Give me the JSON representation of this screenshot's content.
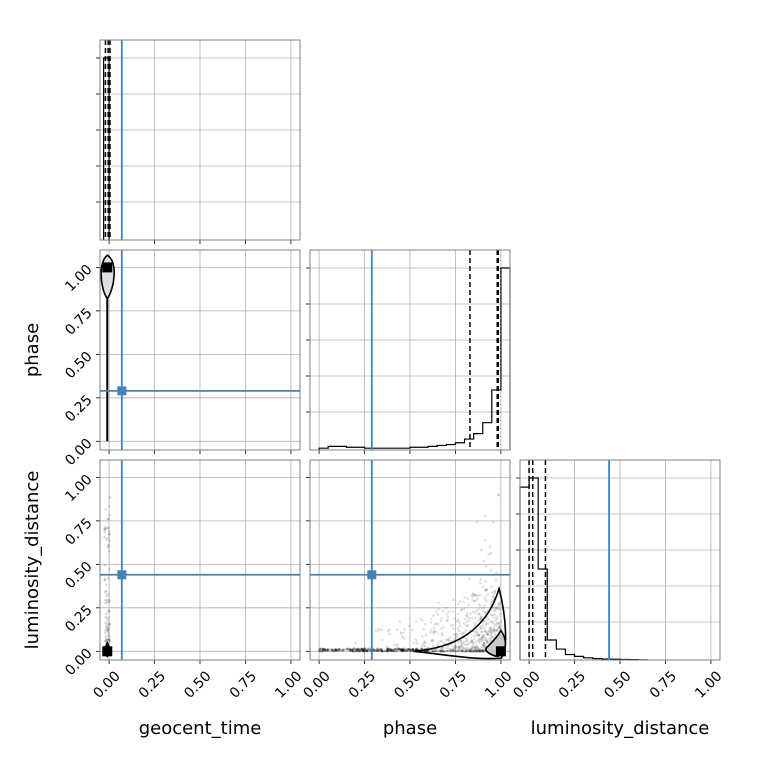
{
  "chart_data": {
    "type": "corner",
    "parameters": [
      "geocent_time",
      "phase",
      "luminosity_distance"
    ],
    "axis_labels": {
      "x": [
        "geocent_time",
        "phase",
        "luminosity_distance"
      ],
      "y": [
        "",
        "phase",
        "luminosity_distance"
      ]
    },
    "ticks": [
      0.0,
      0.25,
      0.5,
      0.75,
      1.0
    ],
    "tick_labels": [
      "0.00",
      "0.25",
      "0.50",
      "0.75",
      "1.00"
    ],
    "xlim": [
      -0.05,
      1.05
    ],
    "ylim": [
      -0.05,
      1.1
    ],
    "grid": true,
    "truth": {
      "geocent_time": 0.07,
      "phase": 0.29,
      "luminosity_distance": 0.44
    },
    "truth_color": "#4682b4",
    "posterior_max": {
      "geocent_time": -0.01,
      "phase": 1.0,
      "luminosity_distance": 0.0
    },
    "quantiles": {
      "geocent_time": [
        -0.02,
        -0.005,
        0.005
      ],
      "phase": [
        0.83,
        0.98,
        0.985
      ],
      "luminosity_distance": [
        0.0,
        0.02,
        0.09
      ]
    },
    "histograms": {
      "geocent_time": {
        "bins": [
          -0.03,
          0.0
        ],
        "counts": [
          1.0
        ]
      },
      "phase": {
        "bins": [
          0.0,
          0.05,
          0.1,
          0.15,
          0.2,
          0.25,
          0.3,
          0.35,
          0.4,
          0.45,
          0.5,
          0.55,
          0.6,
          0.65,
          0.7,
          0.75,
          0.8,
          0.85,
          0.9,
          0.95,
          1.0,
          1.05
        ],
        "counts": [
          0.01,
          0.02,
          0.02,
          0.015,
          0.015,
          0.01,
          0.01,
          0.01,
          0.01,
          0.01,
          0.015,
          0.015,
          0.02,
          0.025,
          0.03,
          0.04,
          0.06,
          0.09,
          0.15,
          0.33,
          1.0
        ]
      },
      "luminosity_distance": {
        "bins": [
          -0.05,
          0.0,
          0.05,
          0.1,
          0.15,
          0.2,
          0.25,
          0.3,
          0.35,
          0.4,
          0.45,
          0.5,
          0.55,
          0.6,
          0.65
        ],
        "counts": [
          0.95,
          1.0,
          0.5,
          0.11,
          0.06,
          0.03,
          0.02,
          0.012,
          0.008,
          0.005,
          0.004,
          0.003,
          0.002,
          0.001
        ]
      }
    }
  }
}
